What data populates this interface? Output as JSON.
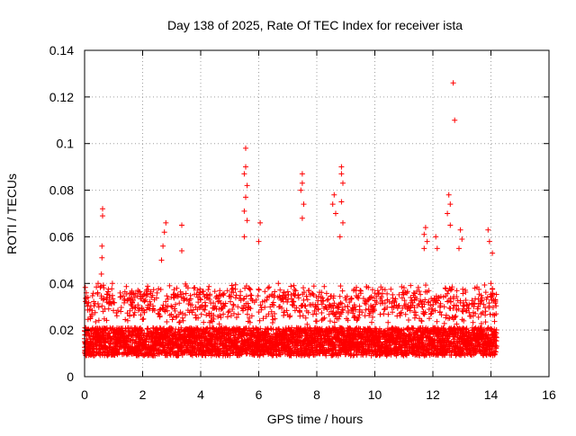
{
  "chart_data": {
    "type": "scatter",
    "title": "Day 138 of 2025, Rate Of TEC Index for receiver ista",
    "xlabel": "GPS time / hours",
    "ylabel": "ROTI / TECUs",
    "xlim": [
      0,
      16
    ],
    "ylim": [
      0,
      0.14
    ],
    "xticks": [
      0,
      2,
      4,
      6,
      8,
      10,
      12,
      14,
      16
    ],
    "yticks": [
      0,
      0.02,
      0.04,
      0.06,
      0.08,
      0.1,
      0.12,
      0.14
    ],
    "ytick_labels": [
      "0",
      "0.02",
      "0.04",
      "0.06",
      "0.08",
      "0.1",
      "0.12",
      "0.14"
    ],
    "grid": true,
    "marker": "plus",
    "color": "#ff0000",
    "series": [
      {
        "name": "ROTI",
        "points": [
          [
            0.62,
            0.072
          ],
          [
            0.62,
            0.069
          ],
          [
            0.6,
            0.056
          ],
          [
            0.6,
            0.051
          ],
          [
            0.58,
            0.044
          ],
          [
            2.8,
            0.066
          ],
          [
            2.75,
            0.062
          ],
          [
            2.7,
            0.056
          ],
          [
            2.65,
            0.05
          ],
          [
            3.35,
            0.065
          ],
          [
            3.35,
            0.054
          ],
          [
            5.55,
            0.098
          ],
          [
            5.55,
            0.09
          ],
          [
            5.5,
            0.087
          ],
          [
            5.6,
            0.082
          ],
          [
            5.55,
            0.077
          ],
          [
            5.5,
            0.071
          ],
          [
            5.6,
            0.067
          ],
          [
            5.5,
            0.06
          ],
          [
            6.05,
            0.066
          ],
          [
            6.0,
            0.058
          ],
          [
            7.5,
            0.087
          ],
          [
            7.5,
            0.083
          ],
          [
            7.45,
            0.08
          ],
          [
            7.55,
            0.074
          ],
          [
            7.5,
            0.068
          ],
          [
            8.6,
            0.078
          ],
          [
            8.55,
            0.074
          ],
          [
            8.65,
            0.07
          ],
          [
            8.85,
            0.09
          ],
          [
            8.85,
            0.087
          ],
          [
            8.9,
            0.083
          ],
          [
            8.85,
            0.075
          ],
          [
            8.9,
            0.066
          ],
          [
            8.8,
            0.06
          ],
          [
            11.75,
            0.064
          ],
          [
            11.7,
            0.061
          ],
          [
            11.8,
            0.058
          ],
          [
            11.7,
            0.055
          ],
          [
            12.1,
            0.06
          ],
          [
            12.15,
            0.055
          ],
          [
            12.7,
            0.126
          ],
          [
            12.75,
            0.11
          ],
          [
            12.55,
            0.078
          ],
          [
            12.6,
            0.074
          ],
          [
            12.5,
            0.07
          ],
          [
            12.6,
            0.065
          ],
          [
            12.95,
            0.063
          ],
          [
            13.0,
            0.059
          ],
          [
            12.9,
            0.055
          ],
          [
            13.9,
            0.063
          ],
          [
            13.95,
            0.058
          ],
          [
            14.05,
            0.053
          ]
        ],
        "dense_band": {
          "x_range": [
            0,
            14.2
          ],
          "y_range": [
            0.004,
            0.04
          ],
          "typical_y": 0.015,
          "note": "dense cloud of ROTI points"
        }
      }
    ]
  }
}
